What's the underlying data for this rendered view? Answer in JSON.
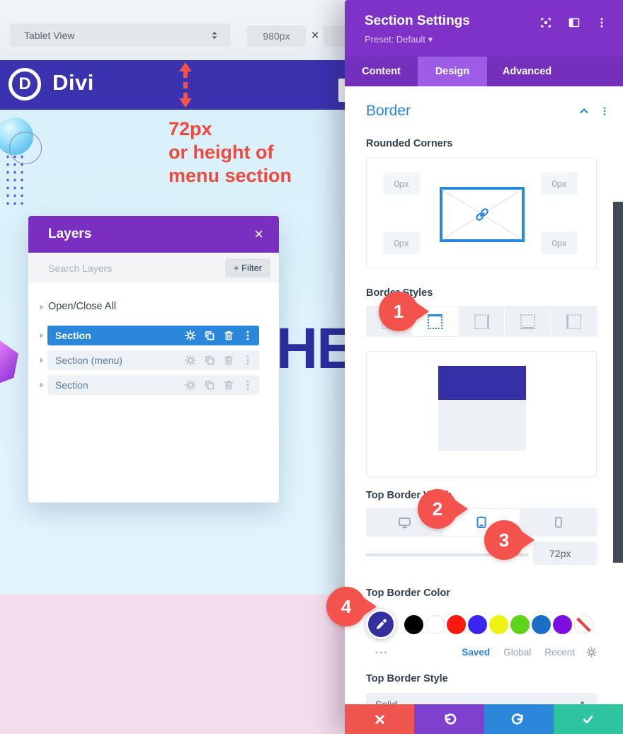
{
  "toolbar": {
    "view_select": "Tablet View",
    "width_value": "980px",
    "close": "×"
  },
  "site": {
    "brand": "Divi",
    "logo_letter": "D"
  },
  "annotation": {
    "line1": "72px",
    "line2": "or height of",
    "line3": "menu section"
  },
  "headline": {
    "fragment": "HE"
  },
  "layers": {
    "title": "Layers",
    "close": "×",
    "search_placeholder": "Search Layers",
    "filter_button": "+ Filter",
    "open_close_all": "Open/Close All",
    "rows": [
      {
        "label": "Section",
        "selected": true
      },
      {
        "label": "Section (menu)",
        "selected": false
      },
      {
        "label": "Section",
        "selected": false
      }
    ]
  },
  "settings": {
    "title": "Section Settings",
    "preset": "Preset: Default ▾",
    "tabs": [
      {
        "label": "Content",
        "active": false
      },
      {
        "label": "Design",
        "active": true
      },
      {
        "label": "Advanced",
        "active": false
      }
    ],
    "border_heading": "Border",
    "rounded_corners_label": "Rounded Corners",
    "corner_values": [
      "0px",
      "0px",
      "0px",
      "0px"
    ],
    "border_styles_label": "Border Styles",
    "top_border_width_label": "Top Border Width",
    "width_value": "72px",
    "top_border_color_label": "Top Border Color",
    "ellipsis": "•••",
    "palette_tabs": {
      "saved": "Saved",
      "global": "Global",
      "recent": "Recent"
    },
    "top_border_style_label": "Top Border Style",
    "style_value": "Solid",
    "badges": {
      "b1": "1",
      "b2": "2",
      "b3": "3",
      "b4": "4"
    },
    "current_swatch_color": "#332f9e",
    "color_swatches": [
      {
        "name": "black",
        "color": "#000000"
      },
      {
        "name": "white",
        "color": "#ffffff",
        "border": true
      },
      {
        "name": "red",
        "color": "#fb1910"
      },
      {
        "name": "blue",
        "color": "#3a26f0"
      },
      {
        "name": "yellow",
        "color": "#eef312"
      },
      {
        "name": "green",
        "color": "#5fd319"
      },
      {
        "name": "blue-dark",
        "color": "#1a6fc4"
      },
      {
        "name": "purple",
        "color": "#7c10e3"
      },
      {
        "name": "transparent",
        "color": "none"
      }
    ]
  },
  "colors": {
    "accent_blue": "#2b87da",
    "settings_header_purple": "#7e32c8",
    "layers_header_purple": "#7b2fc0",
    "menubar_indigo": "#3b32b0",
    "badge_red": "#f4524d",
    "preview_indigo": "#3530a8",
    "action_red": "#f0544f",
    "action_purple": "#8040cf",
    "action_blue": "#2b87da",
    "action_green": "#2fc4a0",
    "page_blue": "#dff1fb",
    "page_pink": "#f5dcec"
  }
}
